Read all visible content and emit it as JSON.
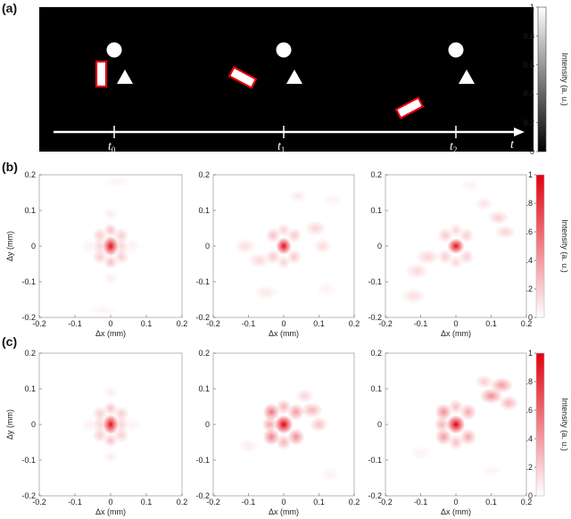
{
  "panels": {
    "a": {
      "letter": "(a)"
    },
    "b": {
      "letter": "(b)"
    },
    "c": {
      "letter": "(c)"
    }
  },
  "scene": {
    "times": [
      {
        "base": "t",
        "sub": "0"
      },
      {
        "base": "t",
        "sub": "1"
      },
      {
        "base": "t",
        "sub": "2"
      }
    ],
    "axis_label": "t"
  },
  "colorbar_gray": {
    "label": "Intensity (a. u.)",
    "ticks": [
      "0",
      "0.2",
      "0.4",
      "0.6",
      "0.8",
      "1"
    ],
    "colors": [
      "#000000",
      "#ffffff"
    ]
  },
  "colorbar_red": {
    "label": "Intensity (a. u.)",
    "ticks": [
      "0",
      "0.2",
      "0.4",
      "0.6",
      "0.8",
      "1"
    ],
    "colors": [
      "#ffffff",
      "#e3000f"
    ]
  },
  "heatmap_axes": {
    "xlabel": "Δx (mm)",
    "ylabel": "Δy (mm)",
    "xticks": [
      "-0.2",
      "-0.1",
      "0",
      "0.1",
      "0.2"
    ],
    "yticks": [
      "0.2",
      "0.1",
      "0",
      "-0.1",
      "-0.2"
    ],
    "xlim": [
      -0.2,
      0.2
    ],
    "ylim": [
      -0.2,
      0.2
    ]
  },
  "chart_data": [
    {
      "type": "heatmap",
      "row": "b",
      "col": 0,
      "xlim": [
        -0.2,
        0.2
      ],
      "ylim": [
        -0.2,
        0.2
      ],
      "blobs": [
        {
          "x": 0,
          "y": 0,
          "sx": 0.01,
          "sy": 0.013,
          "a": 0.95
        },
        {
          "x": 0,
          "y": 0.045,
          "sx": 0.009,
          "sy": 0.009,
          "a": 0.25
        },
        {
          "x": 0,
          "y": -0.045,
          "sx": 0.009,
          "sy": 0.009,
          "a": 0.25
        },
        {
          "x": -0.03,
          "y": 0.03,
          "sx": 0.01,
          "sy": 0.01,
          "a": 0.2
        },
        {
          "x": 0.03,
          "y": 0.03,
          "sx": 0.01,
          "sy": 0.01,
          "a": 0.2
        },
        {
          "x": -0.03,
          "y": -0.03,
          "sx": 0.01,
          "sy": 0.01,
          "a": 0.2
        },
        {
          "x": 0.03,
          "y": -0.03,
          "sx": 0.01,
          "sy": 0.01,
          "a": 0.2
        },
        {
          "x": -0.03,
          "y": 0,
          "sx": 0.009,
          "sy": 0.01,
          "a": 0.18
        },
        {
          "x": 0.03,
          "y": 0,
          "sx": 0.009,
          "sy": 0.01,
          "a": 0.18
        },
        {
          "x": 0,
          "y": 0.09,
          "sx": 0.01,
          "sy": 0.008,
          "a": 0.08
        },
        {
          "x": 0,
          "y": -0.09,
          "sx": 0.01,
          "sy": 0.008,
          "a": 0.08
        },
        {
          "x": -0.06,
          "y": 0,
          "sx": 0.012,
          "sy": 0.01,
          "a": 0.06
        },
        {
          "x": 0.06,
          "y": 0,
          "sx": 0.012,
          "sy": 0.01,
          "a": 0.06
        },
        {
          "x": 0.02,
          "y": 0.18,
          "sx": 0.02,
          "sy": 0.008,
          "a": 0.05
        },
        {
          "x": -0.02,
          "y": -0.18,
          "sx": 0.02,
          "sy": 0.008,
          "a": 0.05
        }
      ]
    },
    {
      "type": "heatmap",
      "row": "b",
      "col": 1,
      "xlim": [
        -0.2,
        0.2
      ],
      "ylim": [
        -0.2,
        0.2
      ],
      "blobs": [
        {
          "x": 0,
          "y": 0,
          "sx": 0.01,
          "sy": 0.011,
          "a": 0.95
        },
        {
          "x": -0.03,
          "y": 0.03,
          "sx": 0.01,
          "sy": 0.01,
          "a": 0.25
        },
        {
          "x": 0.03,
          "y": 0.03,
          "sx": 0.01,
          "sy": 0.01,
          "a": 0.22
        },
        {
          "x": -0.03,
          "y": -0.03,
          "sx": 0.01,
          "sy": 0.01,
          "a": 0.22
        },
        {
          "x": 0.03,
          "y": -0.03,
          "sx": 0.01,
          "sy": 0.01,
          "a": 0.22
        },
        {
          "x": 0,
          "y": 0.045,
          "sx": 0.009,
          "sy": 0.009,
          "a": 0.18
        },
        {
          "x": 0,
          "y": -0.045,
          "sx": 0.009,
          "sy": 0.009,
          "a": 0.18
        },
        {
          "x": 0.09,
          "y": 0.05,
          "sx": 0.014,
          "sy": 0.01,
          "a": 0.18
        },
        {
          "x": 0.11,
          "y": 0.0,
          "sx": 0.012,
          "sy": 0.01,
          "a": 0.15
        },
        {
          "x": 0.04,
          "y": 0.14,
          "sx": 0.012,
          "sy": 0.009,
          "a": 0.1
        },
        {
          "x": -0.07,
          "y": -0.04,
          "sx": 0.014,
          "sy": 0.01,
          "a": 0.16
        },
        {
          "x": -0.11,
          "y": 0.0,
          "sx": 0.014,
          "sy": 0.01,
          "a": 0.14
        },
        {
          "x": -0.05,
          "y": -0.13,
          "sx": 0.016,
          "sy": 0.01,
          "a": 0.1
        },
        {
          "x": 0.12,
          "y": -0.12,
          "sx": 0.014,
          "sy": 0.01,
          "a": 0.06
        },
        {
          "x": 0.14,
          "y": 0.13,
          "sx": 0.014,
          "sy": 0.008,
          "a": 0.06
        }
      ]
    },
    {
      "type": "heatmap",
      "row": "b",
      "col": 2,
      "xlim": [
        -0.2,
        0.2
      ],
      "ylim": [
        -0.2,
        0.2
      ],
      "blobs": [
        {
          "x": 0,
          "y": 0,
          "sx": 0.011,
          "sy": 0.01,
          "a": 0.95
        },
        {
          "x": -0.03,
          "y": 0.03,
          "sx": 0.01,
          "sy": 0.01,
          "a": 0.22
        },
        {
          "x": 0.03,
          "y": 0.03,
          "sx": 0.01,
          "sy": 0.01,
          "a": 0.2
        },
        {
          "x": -0.03,
          "y": -0.03,
          "sx": 0.01,
          "sy": 0.01,
          "a": 0.2
        },
        {
          "x": 0.03,
          "y": -0.03,
          "sx": 0.01,
          "sy": 0.01,
          "a": 0.2
        },
        {
          "x": 0,
          "y": 0.045,
          "sx": 0.009,
          "sy": 0.009,
          "a": 0.16
        },
        {
          "x": 0,
          "y": -0.045,
          "sx": 0.009,
          "sy": 0.009,
          "a": 0.16
        },
        {
          "x": 0.12,
          "y": 0.08,
          "sx": 0.014,
          "sy": 0.009,
          "a": 0.2
        },
        {
          "x": 0.14,
          "y": 0.04,
          "sx": 0.014,
          "sy": 0.009,
          "a": 0.18
        },
        {
          "x": 0.08,
          "y": 0.12,
          "sx": 0.012,
          "sy": 0.009,
          "a": 0.12
        },
        {
          "x": -0.08,
          "y": -0.03,
          "sx": 0.016,
          "sy": 0.01,
          "a": 0.18
        },
        {
          "x": -0.11,
          "y": -0.07,
          "sx": 0.016,
          "sy": 0.01,
          "a": 0.16
        },
        {
          "x": -0.12,
          "y": -0.14,
          "sx": 0.016,
          "sy": 0.01,
          "a": 0.14
        },
        {
          "x": 0.04,
          "y": 0.17,
          "sx": 0.014,
          "sy": 0.008,
          "a": 0.06
        }
      ]
    },
    {
      "type": "heatmap",
      "row": "c",
      "col": 0,
      "xlim": [
        -0.2,
        0.2
      ],
      "ylim": [
        -0.2,
        0.2
      ],
      "blobs": [
        {
          "x": 0,
          "y": 0,
          "sx": 0.01,
          "sy": 0.013,
          "a": 0.95
        },
        {
          "x": 0,
          "y": 0.045,
          "sx": 0.009,
          "sy": 0.009,
          "a": 0.25
        },
        {
          "x": 0,
          "y": -0.045,
          "sx": 0.009,
          "sy": 0.009,
          "a": 0.25
        },
        {
          "x": -0.03,
          "y": 0.03,
          "sx": 0.01,
          "sy": 0.01,
          "a": 0.2
        },
        {
          "x": 0.03,
          "y": 0.03,
          "sx": 0.01,
          "sy": 0.01,
          "a": 0.2
        },
        {
          "x": -0.03,
          "y": -0.03,
          "sx": 0.01,
          "sy": 0.01,
          "a": 0.2
        },
        {
          "x": 0.03,
          "y": -0.03,
          "sx": 0.01,
          "sy": 0.01,
          "a": 0.2
        },
        {
          "x": -0.03,
          "y": 0,
          "sx": 0.009,
          "sy": 0.01,
          "a": 0.18
        },
        {
          "x": 0.03,
          "y": 0,
          "sx": 0.009,
          "sy": 0.01,
          "a": 0.18
        },
        {
          "x": 0,
          "y": 0.09,
          "sx": 0.01,
          "sy": 0.008,
          "a": 0.08
        },
        {
          "x": 0,
          "y": -0.09,
          "sx": 0.01,
          "sy": 0.008,
          "a": 0.08
        },
        {
          "x": -0.06,
          "y": 0,
          "sx": 0.012,
          "sy": 0.01,
          "a": 0.06
        },
        {
          "x": 0.06,
          "y": 0,
          "sx": 0.012,
          "sy": 0.01,
          "a": 0.06
        }
      ]
    },
    {
      "type": "heatmap",
      "row": "c",
      "col": 1,
      "xlim": [
        -0.2,
        0.2
      ],
      "ylim": [
        -0.2,
        0.2
      ],
      "blobs": [
        {
          "x": 0,
          "y": 0,
          "sx": 0.012,
          "sy": 0.012,
          "a": 1.0
        },
        {
          "x": -0.035,
          "y": 0.035,
          "sx": 0.011,
          "sy": 0.011,
          "a": 0.55
        },
        {
          "x": 0.035,
          "y": 0.035,
          "sx": 0.011,
          "sy": 0.011,
          "a": 0.4
        },
        {
          "x": -0.035,
          "y": -0.035,
          "sx": 0.011,
          "sy": 0.011,
          "a": 0.5
        },
        {
          "x": 0.035,
          "y": -0.035,
          "sx": 0.011,
          "sy": 0.011,
          "a": 0.45
        },
        {
          "x": 0,
          "y": 0.05,
          "sx": 0.01,
          "sy": 0.01,
          "a": 0.3
        },
        {
          "x": 0,
          "y": -0.05,
          "sx": 0.01,
          "sy": 0.01,
          "a": 0.3
        },
        {
          "x": -0.04,
          "y": 0,
          "sx": 0.01,
          "sy": 0.01,
          "a": 0.35
        },
        {
          "x": 0.08,
          "y": 0.04,
          "sx": 0.014,
          "sy": 0.01,
          "a": 0.3
        },
        {
          "x": 0.1,
          "y": 0.0,
          "sx": 0.012,
          "sy": 0.01,
          "a": 0.25
        },
        {
          "x": 0.06,
          "y": 0.08,
          "sx": 0.012,
          "sy": 0.009,
          "a": 0.18
        },
        {
          "x": -0.1,
          "y": -0.06,
          "sx": 0.014,
          "sy": 0.01,
          "a": 0.08
        },
        {
          "x": 0.13,
          "y": -0.14,
          "sx": 0.014,
          "sy": 0.009,
          "a": 0.06
        }
      ]
    },
    {
      "type": "heatmap",
      "row": "c",
      "col": 2,
      "xlim": [
        -0.2,
        0.2
      ],
      "ylim": [
        -0.2,
        0.2
      ],
      "blobs": [
        {
          "x": 0,
          "y": 0,
          "sx": 0.012,
          "sy": 0.012,
          "a": 1.0
        },
        {
          "x": -0.035,
          "y": 0.035,
          "sx": 0.011,
          "sy": 0.011,
          "a": 0.45
        },
        {
          "x": 0.035,
          "y": 0.035,
          "sx": 0.011,
          "sy": 0.011,
          "a": 0.35
        },
        {
          "x": -0.035,
          "y": -0.035,
          "sx": 0.011,
          "sy": 0.011,
          "a": 0.4
        },
        {
          "x": 0.035,
          "y": -0.035,
          "sx": 0.011,
          "sy": 0.011,
          "a": 0.35
        },
        {
          "x": 0,
          "y": 0.05,
          "sx": 0.01,
          "sy": 0.01,
          "a": 0.25
        },
        {
          "x": 0,
          "y": -0.05,
          "sx": 0.01,
          "sy": 0.01,
          "a": 0.25
        },
        {
          "x": -0.04,
          "y": 0,
          "sx": 0.01,
          "sy": 0.01,
          "a": 0.3
        },
        {
          "x": 0.1,
          "y": 0.08,
          "sx": 0.015,
          "sy": 0.01,
          "a": 0.45
        },
        {
          "x": 0.13,
          "y": 0.11,
          "sx": 0.015,
          "sy": 0.01,
          "a": 0.4
        },
        {
          "x": 0.15,
          "y": 0.06,
          "sx": 0.013,
          "sy": 0.01,
          "a": 0.3
        },
        {
          "x": 0.08,
          "y": 0.12,
          "sx": 0.012,
          "sy": 0.009,
          "a": 0.2
        },
        {
          "x": -0.1,
          "y": -0.08,
          "sx": 0.016,
          "sy": 0.01,
          "a": 0.06
        },
        {
          "x": 0.1,
          "y": -0.13,
          "sx": 0.014,
          "sy": 0.009,
          "a": 0.05
        }
      ]
    }
  ]
}
